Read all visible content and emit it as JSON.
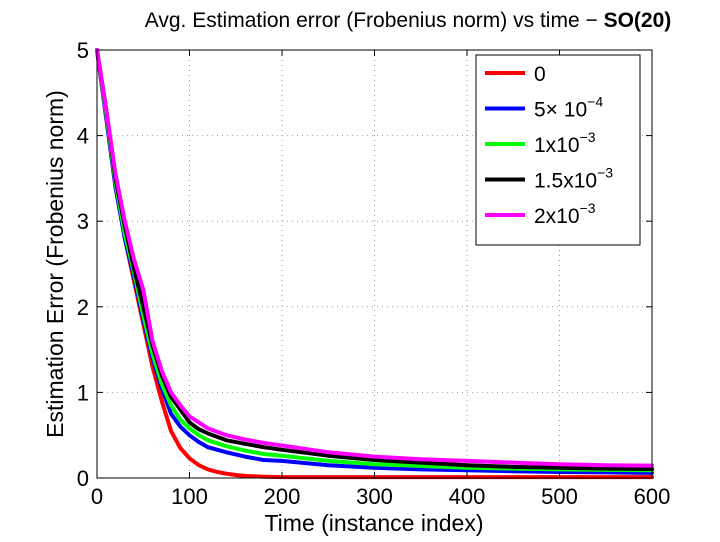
{
  "chart_data": {
    "type": "line",
    "title": "Avg. Estimation error (Frobenius norm) vs time −",
    "title_bold": "SO(20)",
    "xlabel": "Time (instance index)",
    "ylabel": "Estimation Error (Frobenius norm)",
    "xlim": [
      0,
      600
    ],
    "ylim": [
      0,
      5
    ],
    "xticks": [
      "0",
      "100",
      "200",
      "300",
      "400",
      "500",
      "600"
    ],
    "yticks": [
      "0",
      "1",
      "2",
      "3",
      "4",
      "5"
    ],
    "grid": true,
    "legend_position": "top-right",
    "series": [
      {
        "legend": [
          "0"
        ],
        "color": "#ff0000",
        "x": [
          0,
          10,
          20,
          30,
          40,
          50,
          60,
          70,
          80,
          90,
          100,
          110,
          120,
          130,
          140,
          150,
          160,
          180,
          200,
          250,
          300,
          400,
          500,
          600
        ],
        "y": [
          5.0,
          4.2,
          3.4,
          2.8,
          2.3,
          1.8,
          1.3,
          0.9,
          0.55,
          0.35,
          0.23,
          0.15,
          0.1,
          0.07,
          0.05,
          0.035,
          0.025,
          0.015,
          0.01,
          0.01,
          0.01,
          0.01,
          0.01,
          0.01
        ]
      },
      {
        "legend": [
          "5× 10",
          "−4"
        ],
        "color": "#0000ff",
        "x": [
          0,
          10,
          20,
          30,
          40,
          50,
          60,
          70,
          80,
          90,
          100,
          110,
          120,
          140,
          160,
          180,
          200,
          250,
          300,
          350,
          400,
          450,
          500,
          550,
          600
        ],
        "y": [
          5.0,
          4.2,
          3.4,
          2.8,
          2.35,
          1.85,
          1.4,
          1.05,
          0.75,
          0.6,
          0.5,
          0.42,
          0.36,
          0.3,
          0.25,
          0.21,
          0.2,
          0.15,
          0.12,
          0.1,
          0.09,
          0.08,
          0.07,
          0.065,
          0.06
        ]
      },
      {
        "legend": [
          "1x10",
          "−3"
        ],
        "color": "#00ff00",
        "x": [
          0,
          10,
          20,
          30,
          40,
          50,
          60,
          70,
          80,
          90,
          100,
          110,
          120,
          140,
          160,
          180,
          200,
          250,
          300,
          350,
          400,
          450,
          500,
          550,
          600
        ],
        "y": [
          5.0,
          4.25,
          3.45,
          2.85,
          2.4,
          1.9,
          1.45,
          1.1,
          0.85,
          0.68,
          0.58,
          0.5,
          0.44,
          0.37,
          0.32,
          0.28,
          0.26,
          0.2,
          0.16,
          0.14,
          0.12,
          0.11,
          0.1,
          0.095,
          0.09
        ]
      },
      {
        "legend": [
          "1.5x10",
          "−3"
        ],
        "color": "#000000",
        "x": [
          0,
          10,
          20,
          30,
          40,
          50,
          60,
          70,
          80,
          90,
          100,
          110,
          120,
          140,
          160,
          180,
          200,
          250,
          300,
          350,
          400,
          450,
          500,
          550,
          600
        ],
        "y": [
          5.0,
          4.3,
          3.5,
          2.95,
          2.45,
          2.0,
          1.55,
          1.2,
          0.95,
          0.8,
          0.65,
          0.57,
          0.52,
          0.44,
          0.4,
          0.36,
          0.33,
          0.26,
          0.21,
          0.18,
          0.15,
          0.13,
          0.12,
          0.11,
          0.105
        ]
      },
      {
        "legend": [
          "2x10",
          "−3"
        ],
        "color": "#ff00ff",
        "x": [
          0,
          10,
          20,
          30,
          40,
          50,
          60,
          70,
          80,
          90,
          100,
          110,
          120,
          140,
          160,
          180,
          200,
          250,
          300,
          350,
          400,
          450,
          500,
          550,
          600
        ],
        "y": [
          5.0,
          4.3,
          3.55,
          3.0,
          2.55,
          2.2,
          1.6,
          1.25,
          1.0,
          0.85,
          0.72,
          0.65,
          0.58,
          0.5,
          0.45,
          0.41,
          0.38,
          0.3,
          0.25,
          0.22,
          0.2,
          0.18,
          0.16,
          0.15,
          0.145
        ]
      }
    ]
  }
}
